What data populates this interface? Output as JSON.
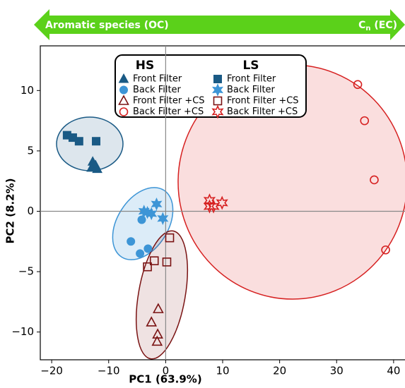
{
  "chart_data": {
    "type": "scatter",
    "arrow": {
      "left_text": "Aromatic species (OC)",
      "right_base": "C",
      "right_sub": "n",
      "right_rest": " (EC)"
    },
    "x_label": "PC1 (63.9%)",
    "y_label": "PC2 (8.2%)",
    "xlim": [
      -22,
      42
    ],
    "ylim": [
      -12.3,
      13.7
    ],
    "xticks": [
      {
        "value": -20,
        "label": "−20"
      },
      {
        "value": -10,
        "label": "−10"
      },
      0,
      10,
      20,
      30,
      40
    ],
    "yticks": [
      {
        "value": -10,
        "label": "−10"
      },
      {
        "value": -5,
        "label": "−5"
      },
      0,
      5,
      10
    ],
    "legend_titles": [
      "HS",
      "LS"
    ],
    "series": [
      {
        "name": "Front Filter",
        "color": "#1a5a85",
        "marker": "triangle",
        "filled": true,
        "x": [
          -12.8,
          -12.3,
          -12.0,
          -13.0
        ],
        "y": [
          4.1,
          3.8,
          3.5,
          3.6
        ]
      },
      {
        "name": "Back Filter",
        "color": "#3d95d6",
        "marker": "circle",
        "filled": true,
        "x": [
          -4.2,
          -6.1,
          -4.5,
          -3.1
        ],
        "y": [
          -0.7,
          -2.5,
          -3.5,
          -3.1
        ]
      },
      {
        "name": "Front Filter +CS",
        "color": "#7a1313",
        "marker": "triangle",
        "filled": false,
        "x": [
          -1.3,
          -2.5,
          -1.4,
          -1.5
        ],
        "y": [
          -8.1,
          -9.2,
          -10.2,
          -10.8
        ]
      },
      {
        "name": "Back Filter +CS",
        "color": "#d62020",
        "marker": "circle",
        "filled": false,
        "x": [
          33.7,
          34.9,
          36.6,
          38.6
        ],
        "y": [
          10.5,
          7.5,
          2.6,
          -3.2
        ]
      },
      {
        "name": "Front Filter",
        "color": "#1a5a85",
        "marker": "square",
        "filled": true,
        "x": [
          -17.3,
          -16.3,
          -15.2,
          -12.2
        ],
        "y": [
          6.3,
          6.1,
          5.8,
          5.8
        ]
      },
      {
        "name": "Back Filter",
        "color": "#3d95d6",
        "marker": "star",
        "filled": true,
        "x": [
          -1.6,
          -3.2,
          -2.5,
          -0.5,
          -3.8
        ],
        "y": [
          0.6,
          -0.1,
          -0.2,
          -0.6,
          0.0
        ]
      },
      {
        "name": "Front Filter +CS",
        "color": "#7a1313",
        "marker": "square",
        "filled": false,
        "x": [
          0.7,
          -2.0,
          -3.2,
          0.2
        ],
        "y": [
          -2.2,
          -4.1,
          -4.6,
          -4.2
        ]
      },
      {
        "name": "Back Filter +CS",
        "color": "#d62020",
        "marker": "star",
        "filled": false,
        "x": [
          7.7,
          7.7,
          8.4,
          9.9
        ],
        "y": [
          0.9,
          0.4,
          0.4,
          0.7
        ]
      }
    ]
  }
}
